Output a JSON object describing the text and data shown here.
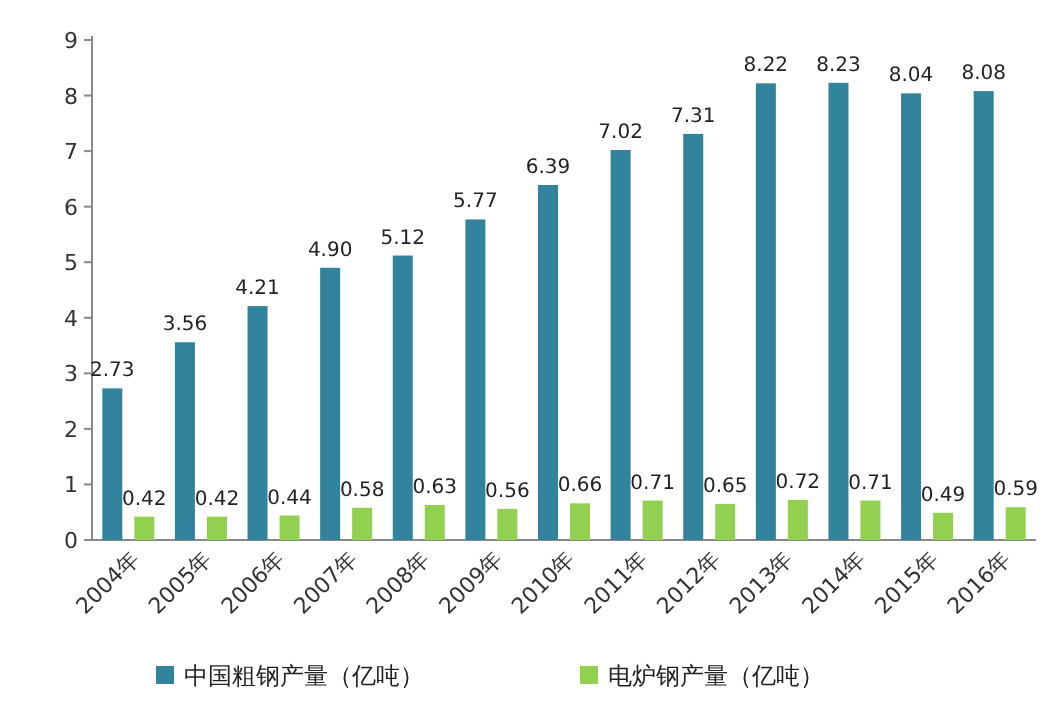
{
  "chart_data": {
    "type": "bar",
    "categories": [
      "2004年",
      "2005年",
      "2006年",
      "2007年",
      "2008年",
      "2009年",
      "2010年",
      "2011年",
      "2012年",
      "2013年",
      "2014年",
      "2015年",
      "2016年"
    ],
    "series": [
      {
        "name": "中国粗钢产量（亿吨）",
        "color": "#31849b",
        "values": [
          2.73,
          3.56,
          4.21,
          4.9,
          5.12,
          5.77,
          6.39,
          7.02,
          7.31,
          8.22,
          8.23,
          8.04,
          8.08
        ],
        "value_labels": [
          "2.73",
          "3.56",
          "4.21",
          "4.90",
          "5.12",
          "5.77",
          "6.39",
          "7.02",
          "7.31",
          "8.22",
          "8.23",
          "8.04",
          "8.08"
        ]
      },
      {
        "name": "电炉钢产量（亿吨）",
        "color": "#92d050",
        "values": [
          0.42,
          0.42,
          0.44,
          0.58,
          0.63,
          0.56,
          0.66,
          0.71,
          0.65,
          0.72,
          0.71,
          0.49,
          0.59
        ],
        "value_labels": [
          "0.42",
          "0.42",
          "0.44",
          "0.58",
          "0.63",
          "0.56",
          "0.66",
          "0.71",
          "0.65",
          "0.72",
          "0.71",
          "0.49",
          "0.59"
        ]
      }
    ],
    "ylim": [
      0,
      9
    ],
    "yticks": [
      0,
      1,
      2,
      3,
      4,
      5,
      6,
      7,
      8,
      9
    ],
    "legend": "bottom"
  }
}
